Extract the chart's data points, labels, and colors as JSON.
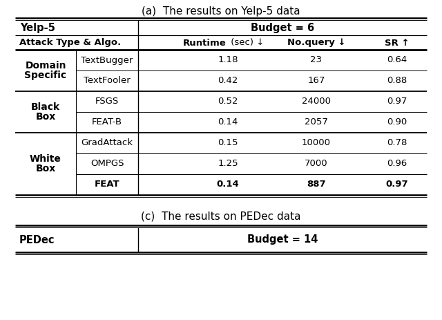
{
  "title_a": "(a)  The results on Yelp-5 data",
  "title_c": "(c)  The results on PEDec data",
  "groups": [
    {
      "line1": "Domain",
      "line2": "Specific",
      "rows": [
        {
          "algo": "TextBugger",
          "runtime": "1.18",
          "query": "23",
          "sr": "0.64",
          "bold": false
        },
        {
          "algo": "TextFooler",
          "runtime": "0.42",
          "query": "167",
          "sr": "0.88",
          "bold": false
        }
      ]
    },
    {
      "line1": "Black",
      "line2": "Box",
      "rows": [
        {
          "algo": "FSGS",
          "runtime": "0.52",
          "query": "24000",
          "sr": "0.97",
          "bold": false
        },
        {
          "algo": "FEAT-B",
          "runtime": "0.14",
          "query": "2057",
          "sr": "0.90",
          "bold": false
        }
      ]
    },
    {
      "line1": "White",
      "line2": "Box",
      "rows": [
        {
          "algo": "GradAttack",
          "runtime": "0.15",
          "query": "10000",
          "sr": "0.78",
          "bold": false
        },
        {
          "algo": "OMPGS",
          "runtime": "1.25",
          "query": "7000",
          "sr": "0.96",
          "bold": false
        },
        {
          "algo": "FEAT",
          "runtime": "0.14",
          "query": "887",
          "sr": "0.97",
          "bold": true
        }
      ]
    }
  ],
  "bg_color": "#ffffff",
  "text_color": "#000000",
  "fig_width": 6.4,
  "fig_height": 4.63,
  "dpi": 100
}
